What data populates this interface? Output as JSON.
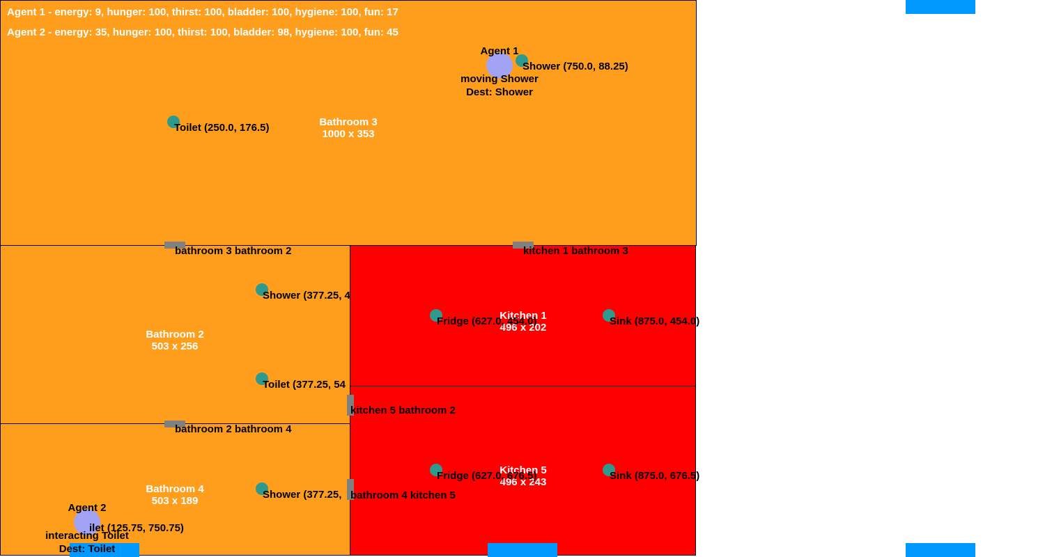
{
  "colors": {
    "bathroom": "#FF9E1C",
    "kitchen": "#FF0000",
    "object": "#2E9A8E",
    "agent": "#A3A3F6",
    "door": "#808080",
    "spawn": "#0099FF",
    "label": "#FFFFFF"
  },
  "hud": {
    "agent1": "Agent 1 - energy: 9, hunger: 100, thirst: 100, bladder: 100, hygiene: 100, fun: 17",
    "agent2": "Agent 2 - energy: 35, hunger: 100, thirst: 100, bladder: 98, hygiene: 100, fun: 45"
  },
  "rooms": {
    "bathroom3": {
      "name": "Bathroom 3",
      "size": "1000 x 353"
    },
    "bathroom2": {
      "name": "Bathroom 2",
      "size": "503 x 256"
    },
    "bathroom4": {
      "name": "Bathroom 4",
      "size": "503 x 189"
    },
    "kitchen1": {
      "name": "Kitchen 1",
      "size": "496 x 202"
    },
    "kitchen5": {
      "name": "Kitchen 5",
      "size": "496 x 243"
    }
  },
  "objects": {
    "b3_toilet": {
      "icon": "object-dot",
      "label": "Toilet (250.0, 176.5)"
    },
    "b3_shower": {
      "icon": "object-dot",
      "label": "Shower (750.0, 88.25)"
    },
    "b2_shower": {
      "icon": "object-dot",
      "label": "Shower (377.25, 4"
    },
    "b2_toilet": {
      "icon": "object-dot",
      "label": "Toilet (377.25, 54"
    },
    "b4_shower": {
      "icon": "object-dot",
      "label": "Shower (377.25,"
    },
    "b4_toilet": {
      "icon": "object-dot",
      "label": "ilet (125.75, 750.75)"
    },
    "k1_fridge": {
      "icon": "object-dot",
      "label": "Fridge (627.0, 454.0)"
    },
    "k1_sink": {
      "icon": "object-dot",
      "label": "Sink (875.0, 454.0)"
    },
    "k5_fridge": {
      "icon": "object-dot",
      "label": "Fridge (627.0, 676.5)"
    },
    "k5_sink": {
      "icon": "object-dot",
      "label": "Sink (875.0, 676.5)"
    }
  },
  "doors": {
    "b3_b2": "bathroom 3 bathroom 2",
    "k1_b3": "kitchen 1 bathroom 3",
    "k5_b2": "kitchen 5 bathroom 2",
    "b2_b4": "bathroom 2 bathroom 4",
    "b4_k5": "bathroom 4 kitchen 5"
  },
  "agents": {
    "agent1": {
      "name": "Agent 1",
      "state": "moving Shower",
      "dest": "Dest: Shower"
    },
    "agent2": {
      "name": "Agent 2",
      "state": "interacting Toilet",
      "dest": "Dest: Toilet"
    }
  }
}
